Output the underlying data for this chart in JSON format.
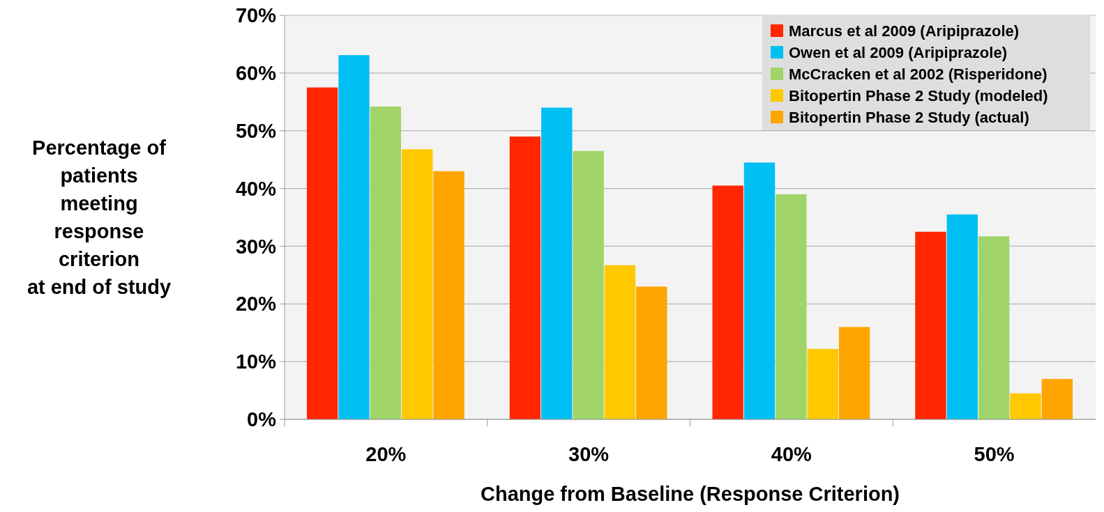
{
  "chart_data": {
    "type": "bar",
    "xlabel": "Change from Baseline (Response Criterion)",
    "ylabel": "Percentage of\npatients\nmeeting\nresponse\ncriterion\nat end of study",
    "categories": [
      "20%",
      "30%",
      "40%",
      "50%"
    ],
    "series": [
      {
        "name": "Marcus et al 2009 (Aripiprazole)",
        "color": "#ff2600",
        "values": [
          57.5,
          49,
          40.5,
          32.5
        ]
      },
      {
        "name": "Owen et al 2009 (Aripiprazole)",
        "color": "#00bff3",
        "values": [
          63.1,
          54,
          44.5,
          35.5
        ]
      },
      {
        "name": "McCracken et  al 2002 (Risperidone)",
        "color": "#a0d468",
        "values": [
          54.2,
          46.5,
          39,
          31.7
        ]
      },
      {
        "name": "Bitopertin Phase 2 Study (modeled)",
        "color": "#ffc800",
        "values": [
          46.8,
          26.7,
          12.2,
          4.5
        ]
      },
      {
        "name": "Bitopertin Phase 2 Study (actual)",
        "color": "#ffa500",
        "values": [
          43,
          23,
          16,
          7
        ]
      }
    ],
    "ylim": [
      0,
      70
    ],
    "yticks": [
      {
        "value": 0,
        "label": "0%"
      },
      {
        "value": 10,
        "label": "10%"
      },
      {
        "value": 20,
        "label": "20%"
      },
      {
        "value": 30,
        "label": "30%"
      },
      {
        "value": 40,
        "label": "40%"
      },
      {
        "value": 50,
        "label": "50%"
      },
      {
        "value": 60,
        "label": "60%"
      },
      {
        "value": 70,
        "label": "70%"
      }
    ],
    "grid": "y",
    "legend": "top right"
  }
}
